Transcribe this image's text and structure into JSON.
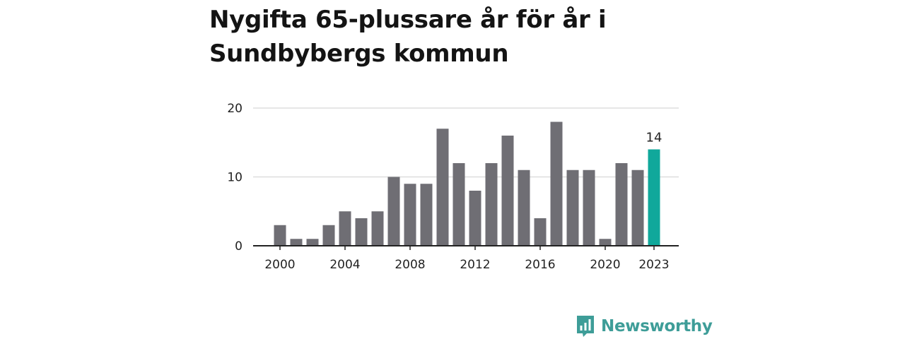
{
  "title": "Nygifta 65-plussare år för år i Sundbybergs kommun",
  "brand": {
    "name": "Newsworthy",
    "icon": "newsworthy-logo-icon",
    "color": "#3e9d98"
  },
  "colors": {
    "bar": "#6f6e74",
    "highlight": "#10a89b",
    "grid": "#dddddd",
    "axis": "#222222"
  },
  "chart_data": {
    "type": "bar",
    "title": "Nygifta 65-plussare år för år i Sundbybergs kommun",
    "xlabel": "",
    "ylabel": "",
    "categories": [
      2000,
      2001,
      2002,
      2003,
      2004,
      2005,
      2006,
      2007,
      2008,
      2009,
      2010,
      2011,
      2012,
      2013,
      2014,
      2015,
      2016,
      2017,
      2018,
      2019,
      2020,
      2021,
      2022,
      2023
    ],
    "values": [
      3,
      1,
      1,
      3,
      5,
      4,
      5,
      10,
      9,
      9,
      17,
      12,
      8,
      12,
      16,
      11,
      4,
      18,
      11,
      11,
      1,
      12,
      11,
      14
    ],
    "ylim": [
      0,
      20
    ],
    "yticks": [
      0,
      10,
      20
    ],
    "xticks": [
      "2000",
      "2004",
      "2008",
      "2012",
      "2016",
      "2020",
      "2023"
    ],
    "highlight": {
      "category": 2023,
      "label": "14"
    },
    "grid": true
  }
}
